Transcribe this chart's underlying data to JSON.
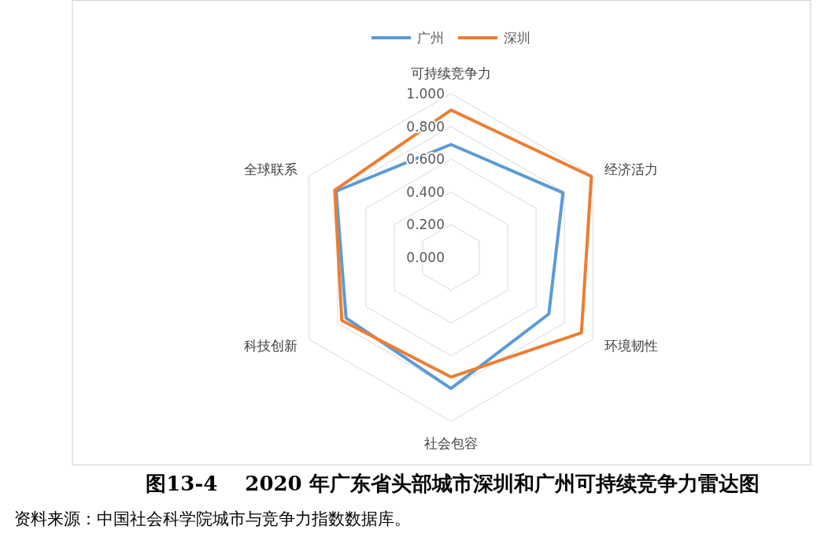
{
  "chart_data": {
    "type": "radar",
    "title": "图13-4　 2020 年广东省头部城市深圳和广州可持续竞争力雷达图",
    "annotations": [
      "资料来源：中国社会科学院城市与竞争力指数数据库。"
    ],
    "categories": [
      "可持续竞争力",
      "经济活力",
      "环境韧性",
      "社会包容",
      "科技创新",
      "全球联系"
    ],
    "series": [
      {
        "name": "广州",
        "color": "#5b9bd5",
        "values": [
          0.69,
          0.79,
          0.69,
          0.8,
          0.74,
          0.81
        ]
      },
      {
        "name": "深圳",
        "color": "#ed7d31",
        "values": [
          0.9,
          0.99,
          0.92,
          0.73,
          0.77,
          0.82
        ]
      }
    ],
    "ylim": [
      0,
      1
    ],
    "yticks": [
      {
        "value": 0,
        "label": "0.000"
      },
      {
        "value": 0.2,
        "label": "0.200"
      },
      {
        "value": 0.4,
        "label": "0.400"
      },
      {
        "value": 0.6,
        "label": "0.600"
      },
      {
        "value": 0.8,
        "label": "0.800"
      },
      {
        "value": 1,
        "label": "1.000"
      }
    ],
    "grid": true,
    "legend": "top",
    "line_style": "solid",
    "marker": "none"
  }
}
